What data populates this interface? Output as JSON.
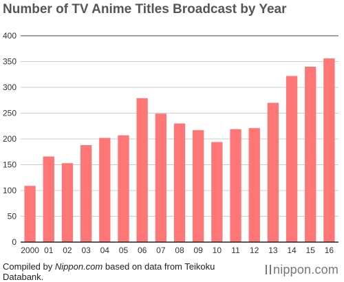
{
  "header": {
    "title": "Number of TV Anime Titles Broadcast by Year"
  },
  "footer": {
    "source_prefix": "Compiled by ",
    "source_publisher": "Nippon.com",
    "source_suffix": " based on data from Teikoku Databank.",
    "logo_text": "nippon.com"
  },
  "colors": {
    "bar": "#ff7676",
    "grid": "#cccccc",
    "axis": "#222222"
  },
  "chart_data": {
    "type": "bar",
    "title": "Number of TV Anime Titles Broadcast by Year",
    "xlabel": "",
    "ylabel": "",
    "categories": [
      "2000",
      "01",
      "02",
      "03",
      "04",
      "05",
      "06",
      "07",
      "08",
      "09",
      "10",
      "11",
      "12",
      "13",
      "14",
      "15",
      "16"
    ],
    "values": [
      109,
      166,
      153,
      188,
      202,
      207,
      279,
      249,
      230,
      217,
      194,
      219,
      221,
      270,
      322,
      340,
      356
    ],
    "ylim": [
      0,
      400
    ],
    "yticks": [
      0,
      50,
      100,
      150,
      200,
      250,
      300,
      350,
      400
    ],
    "grid": true,
    "legend": "none"
  }
}
